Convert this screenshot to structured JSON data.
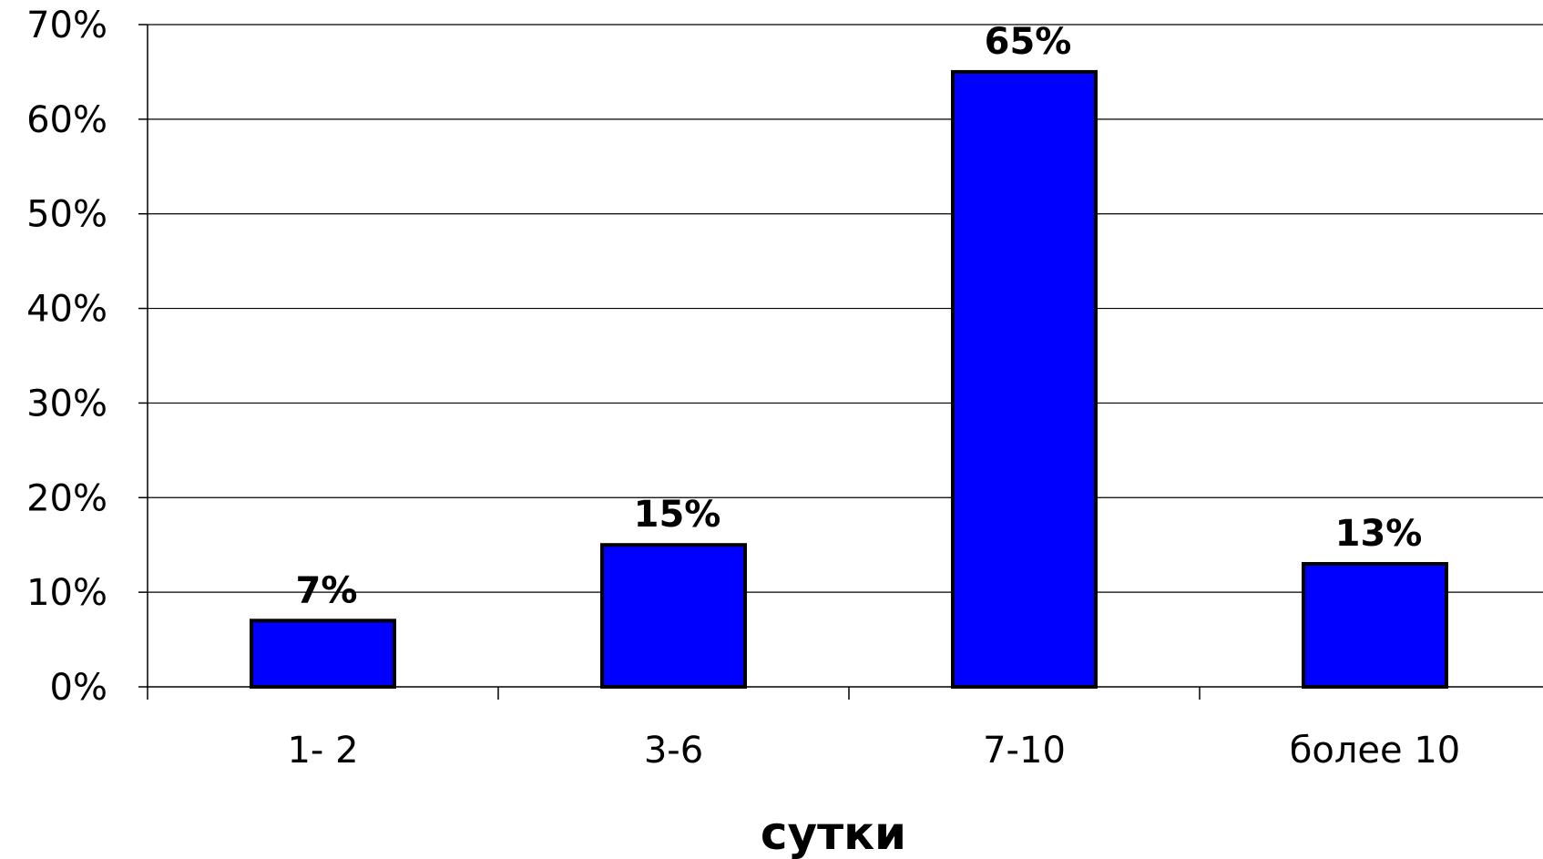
{
  "chart_data": {
    "type": "bar",
    "categories": [
      "1- 2",
      "3-6",
      "7-10",
      "более 10"
    ],
    "values": [
      7,
      15,
      65,
      13
    ],
    "data_labels": [
      "7%",
      "15%",
      "65%",
      "13%"
    ],
    "title": "",
    "xlabel": "сутки",
    "ylabel": "",
    "ylim": [
      0,
      70
    ],
    "yticks": [
      0,
      10,
      20,
      30,
      40,
      50,
      60,
      70
    ],
    "ytick_labels": [
      "0%",
      "10%",
      "20%",
      "30%",
      "40%",
      "50%",
      "60%",
      "70%"
    ],
    "grid": true,
    "legend": "none",
    "bar_color": "#0000ff",
    "bar_edge_color": "#000000"
  }
}
